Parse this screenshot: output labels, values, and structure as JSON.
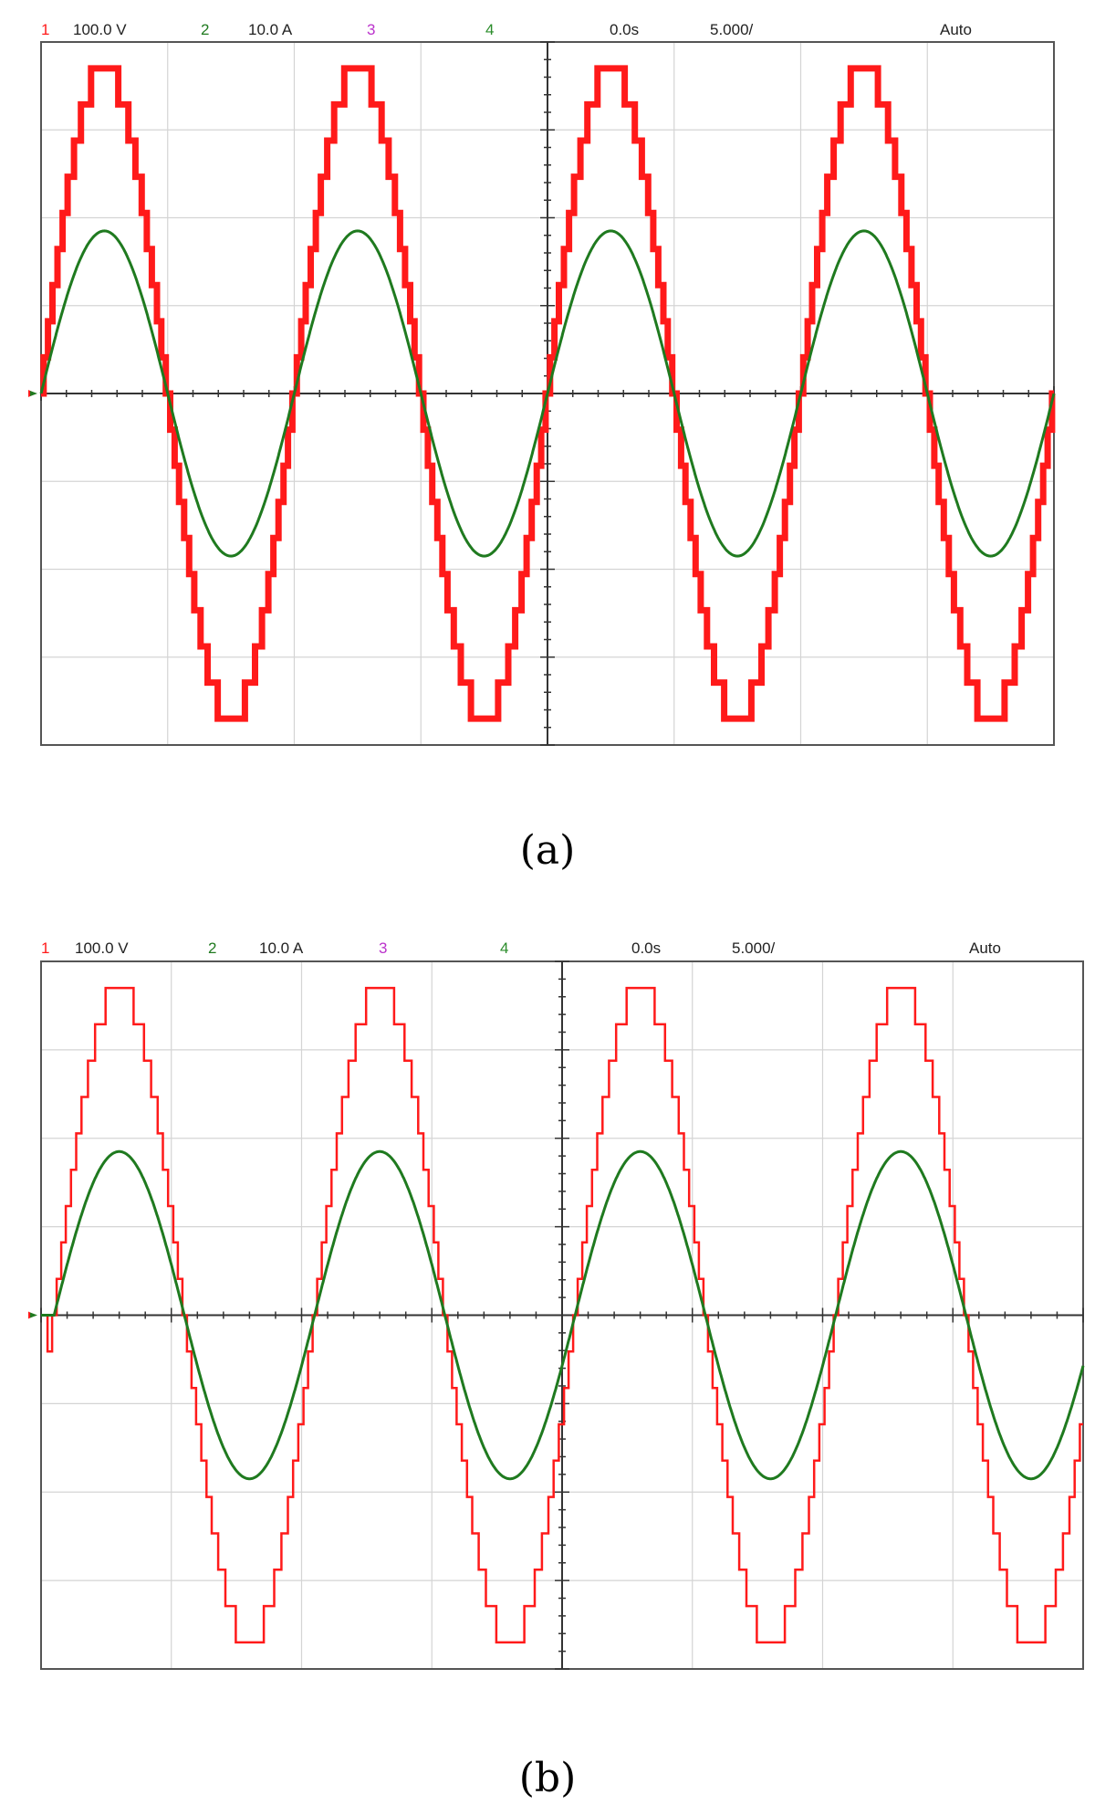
{
  "colors": {
    "voltage": "#ff1a1a",
    "current": "#1f7a1f",
    "ch3": "#bb33cc",
    "ch4": "#2a8c2a",
    "header_text": "#222222"
  },
  "chart_data": [
    {
      "type": "line",
      "caption": "(a)",
      "header": {
        "ch1_num": "1",
        "ch1_scale": "100.0 V",
        "ch2_num": "2",
        "ch2_scale": "10.0 A",
        "ch3_num": "3",
        "ch4_num": "4",
        "time_offset": "0.0s",
        "time_scale": "5.000/",
        "trigger": "Auto"
      },
      "x_divisions": 8,
      "y_divisions": 8,
      "grid": true,
      "xlim": [
        0,
        8
      ],
      "ylim": [
        -4,
        4
      ],
      "series": [
        {
          "channel": "1",
          "color": "#ff1a1a",
          "style": "thick-staircase",
          "amplitude_div": 3.7,
          "period_div": 2,
          "phase_div": 0,
          "levels": 9,
          "start_x": 0
        },
        {
          "channel": "2",
          "color": "#1f7a1f",
          "style": "sine",
          "amplitude_div": 1.85,
          "period_div": 2,
          "phase_div": 0,
          "start_x": 0
        }
      ]
    },
    {
      "type": "line",
      "caption": "(b)",
      "header": {
        "ch1_num": "1",
        "ch1_scale": "100.0 V",
        "ch2_num": "2",
        "ch2_scale": "10.0 A",
        "ch3_num": "3",
        "ch4_num": "4",
        "time_offset": "0.0s",
        "time_scale": "5.000/",
        "trigger": "Auto"
      },
      "x_divisions": 8,
      "y_divisions": 8,
      "grid": true,
      "xlim": [
        0,
        8
      ],
      "ylim": [
        -4,
        4
      ],
      "series": [
        {
          "channel": "1",
          "color": "#ff1a1a",
          "style": "thin-staircase",
          "amplitude_div": 3.7,
          "period_div": 2,
          "phase_div": 0.1,
          "levels": 9,
          "start_x": 0.05
        },
        {
          "channel": "2",
          "color": "#1f7a1f",
          "style": "sine",
          "amplitude_div": 1.85,
          "period_div": 2,
          "phase_div": 0.1,
          "start_x": 0.1
        }
      ]
    }
  ]
}
